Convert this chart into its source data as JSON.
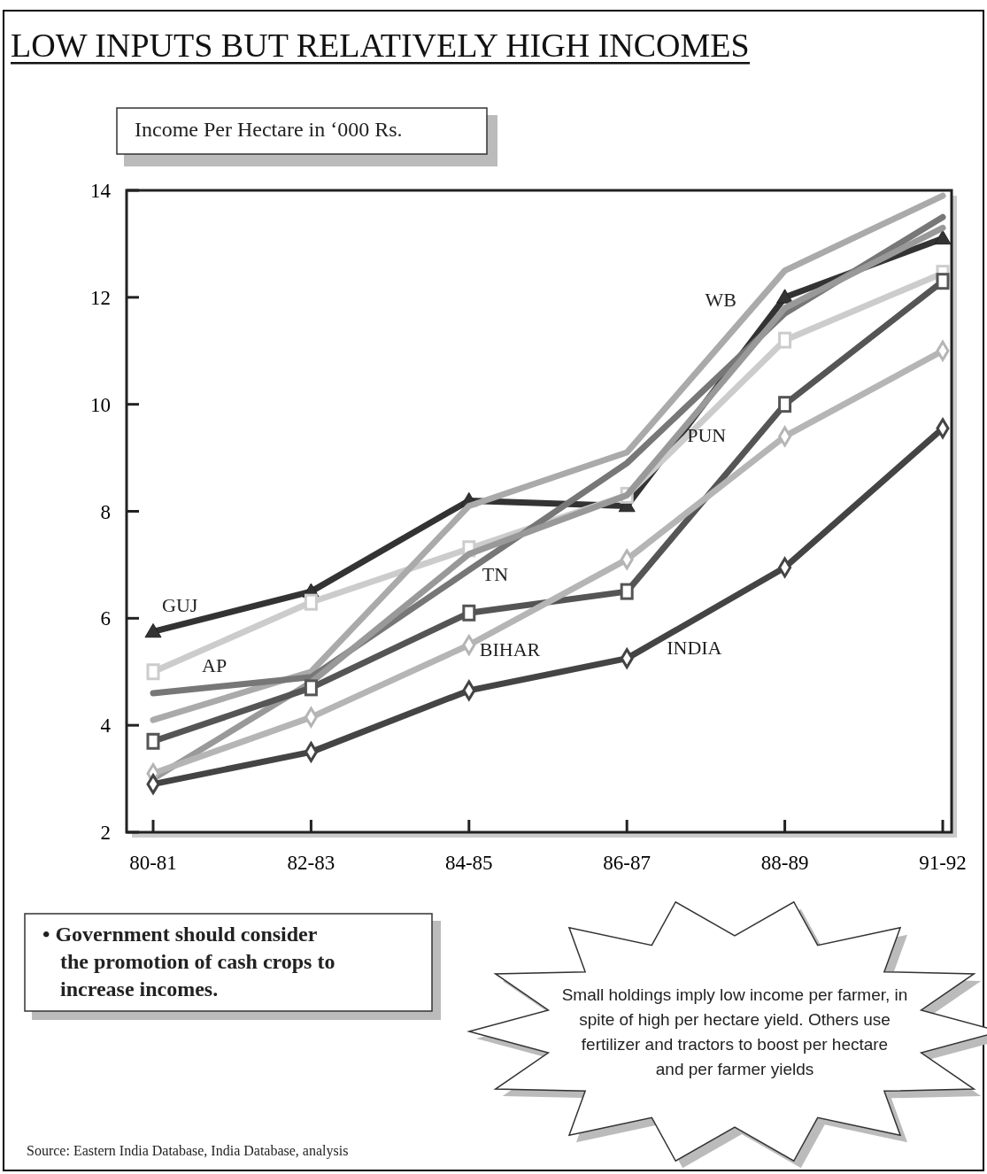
{
  "chart_data": {
    "type": "line",
    "title": "LOW INPUTS BUT RELATIVELY HIGH INCOMES",
    "ylabel": "Income Per Hectare in ‘000 Rs.",
    "categories": [
      "80-81",
      "82-83",
      "84-85",
      "86-87",
      "88-89",
      "91-92"
    ],
    "ylim": [
      2,
      14
    ],
    "yticks": [
      2,
      4,
      6,
      8,
      10,
      12,
      14
    ],
    "grid": false,
    "line_style": "solid",
    "series": [
      {
        "name": "GUJ",
        "color": "#333333",
        "marker": "triangle",
        "values": [
          5.75,
          6.5,
          8.2,
          8.1,
          12.0,
          13.1
        ]
      },
      {
        "name": "AP",
        "color": "#cccccc",
        "marker": "square",
        "values": [
          5.0,
          6.3,
          7.3,
          8.3,
          11.2,
          12.45
        ]
      },
      {
        "name": "WB",
        "color": "#aaaaaa",
        "marker": "none",
        "values": [
          4.1,
          5.0,
          8.1,
          9.1,
          12.5,
          13.9
        ]
      },
      {
        "name": "TN",
        "color": "#777777",
        "marker": "none",
        "values": [
          4.6,
          4.9,
          6.9,
          8.9,
          11.7,
          13.5
        ]
      },
      {
        "name": "PUN",
        "color": "#999999",
        "marker": "none",
        "values": [
          3.0,
          4.8,
          7.2,
          8.3,
          11.8,
          13.3
        ]
      },
      {
        "color": "#555555",
        "marker": "square",
        "values": [
          3.7,
          4.7,
          6.1,
          6.5,
          10.0,
          12.3
        ]
      },
      {
        "name": "BIHAR",
        "color": "#b5b5b5",
        "marker": "diamond",
        "values": [
          3.1,
          4.15,
          5.5,
          7.1,
          9.4,
          11.0
        ]
      },
      {
        "name": "INDIA",
        "color": "#444444",
        "marker": "diamond",
        "values": [
          2.9,
          3.5,
          4.65,
          5.25,
          6.95,
          9.55
        ]
      }
    ],
    "annotations": [
      "• Government should consider the promotion of cash crops to increase incomes.",
      "Small holdings imply low income per farmer, in spite of high per hectare yield. Others use fertilizer and tractors to boost per hectare and per farmer yields",
      "Source: Eastern India Database, India Database, analysis"
    ]
  }
}
